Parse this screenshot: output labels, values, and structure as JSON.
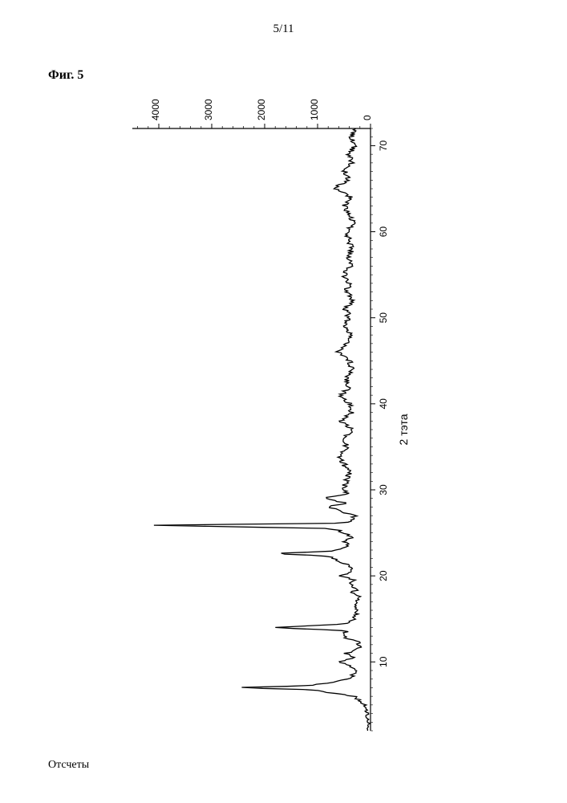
{
  "page_number": "5/11",
  "figure_title": "Фиг. 5",
  "counts_label": "Отсчеты",
  "chart": {
    "type": "line",
    "orientation": "rotated-ccw",
    "xlabel": "2 тэта",
    "ylabel": "Отсчеты",
    "xlim": [
      2,
      72
    ],
    "ylim": [
      0,
      4500
    ],
    "xtick_step": 10,
    "xtick_start": 10,
    "xticks": [
      10,
      20,
      30,
      40,
      50,
      60,
      70
    ],
    "yticks": [
      0,
      1000,
      2000,
      3000,
      4000
    ],
    "background_color": "#ffffff",
    "line_color": "#000000",
    "axis_color": "#000000",
    "line_width": 1.3,
    "label_fontsize": 14,
    "tick_fontsize": 12,
    "minor_ticks": true,
    "series": [
      {
        "two_theta": [
          2,
          3,
          4,
          5,
          6,
          6.8,
          7.0,
          7.2,
          8,
          9,
          9.5,
          10,
          10.5,
          11,
          11.7,
          12.0,
          12.3,
          13,
          13.6,
          14.0,
          14.4,
          15,
          16,
          17,
          17.5,
          18,
          18.5,
          19,
          19.5,
          20,
          20.5,
          21,
          21.5,
          22.3,
          22.6,
          22.9,
          23.5,
          24,
          24.5,
          25,
          25.5,
          25.9,
          26.1,
          26.3,
          27,
          27.5,
          28,
          28.5,
          29,
          29.5,
          30,
          31,
          32,
          33,
          34,
          35,
          36,
          37,
          38,
          39,
          40,
          41,
          42,
          43,
          44,
          45,
          46,
          47,
          48,
          49,
          50,
          51,
          52,
          53,
          54,
          55,
          56,
          57,
          58,
          59,
          60,
          61,
          62,
          63,
          64,
          65,
          66,
          67,
          68,
          69,
          70,
          71,
          72
        ],
        "counts": [
          30,
          40,
          60,
          120,
          300,
          1200,
          2700,
          1200,
          400,
          250,
          350,
          600,
          350,
          450,
          200,
          250,
          200,
          550,
          450,
          1800,
          450,
          300,
          250,
          300,
          200,
          350,
          250,
          400,
          300,
          550,
          400,
          350,
          500,
          800,
          1900,
          700,
          400,
          500,
          350,
          500,
          700,
          4300,
          700,
          350,
          300,
          550,
          800,
          450,
          900,
          400,
          550,
          450,
          400,
          500,
          600,
          450,
          500,
          350,
          550,
          350,
          400,
          550,
          400,
          450,
          350,
          400,
          600,
          450,
          350,
          500,
          400,
          480,
          350,
          450,
          400,
          500,
          380,
          420,
          350,
          400,
          450,
          300,
          400,
          500,
          350,
          700,
          400,
          500,
          350,
          400,
          300,
          350,
          300
        ]
      }
    ]
  }
}
